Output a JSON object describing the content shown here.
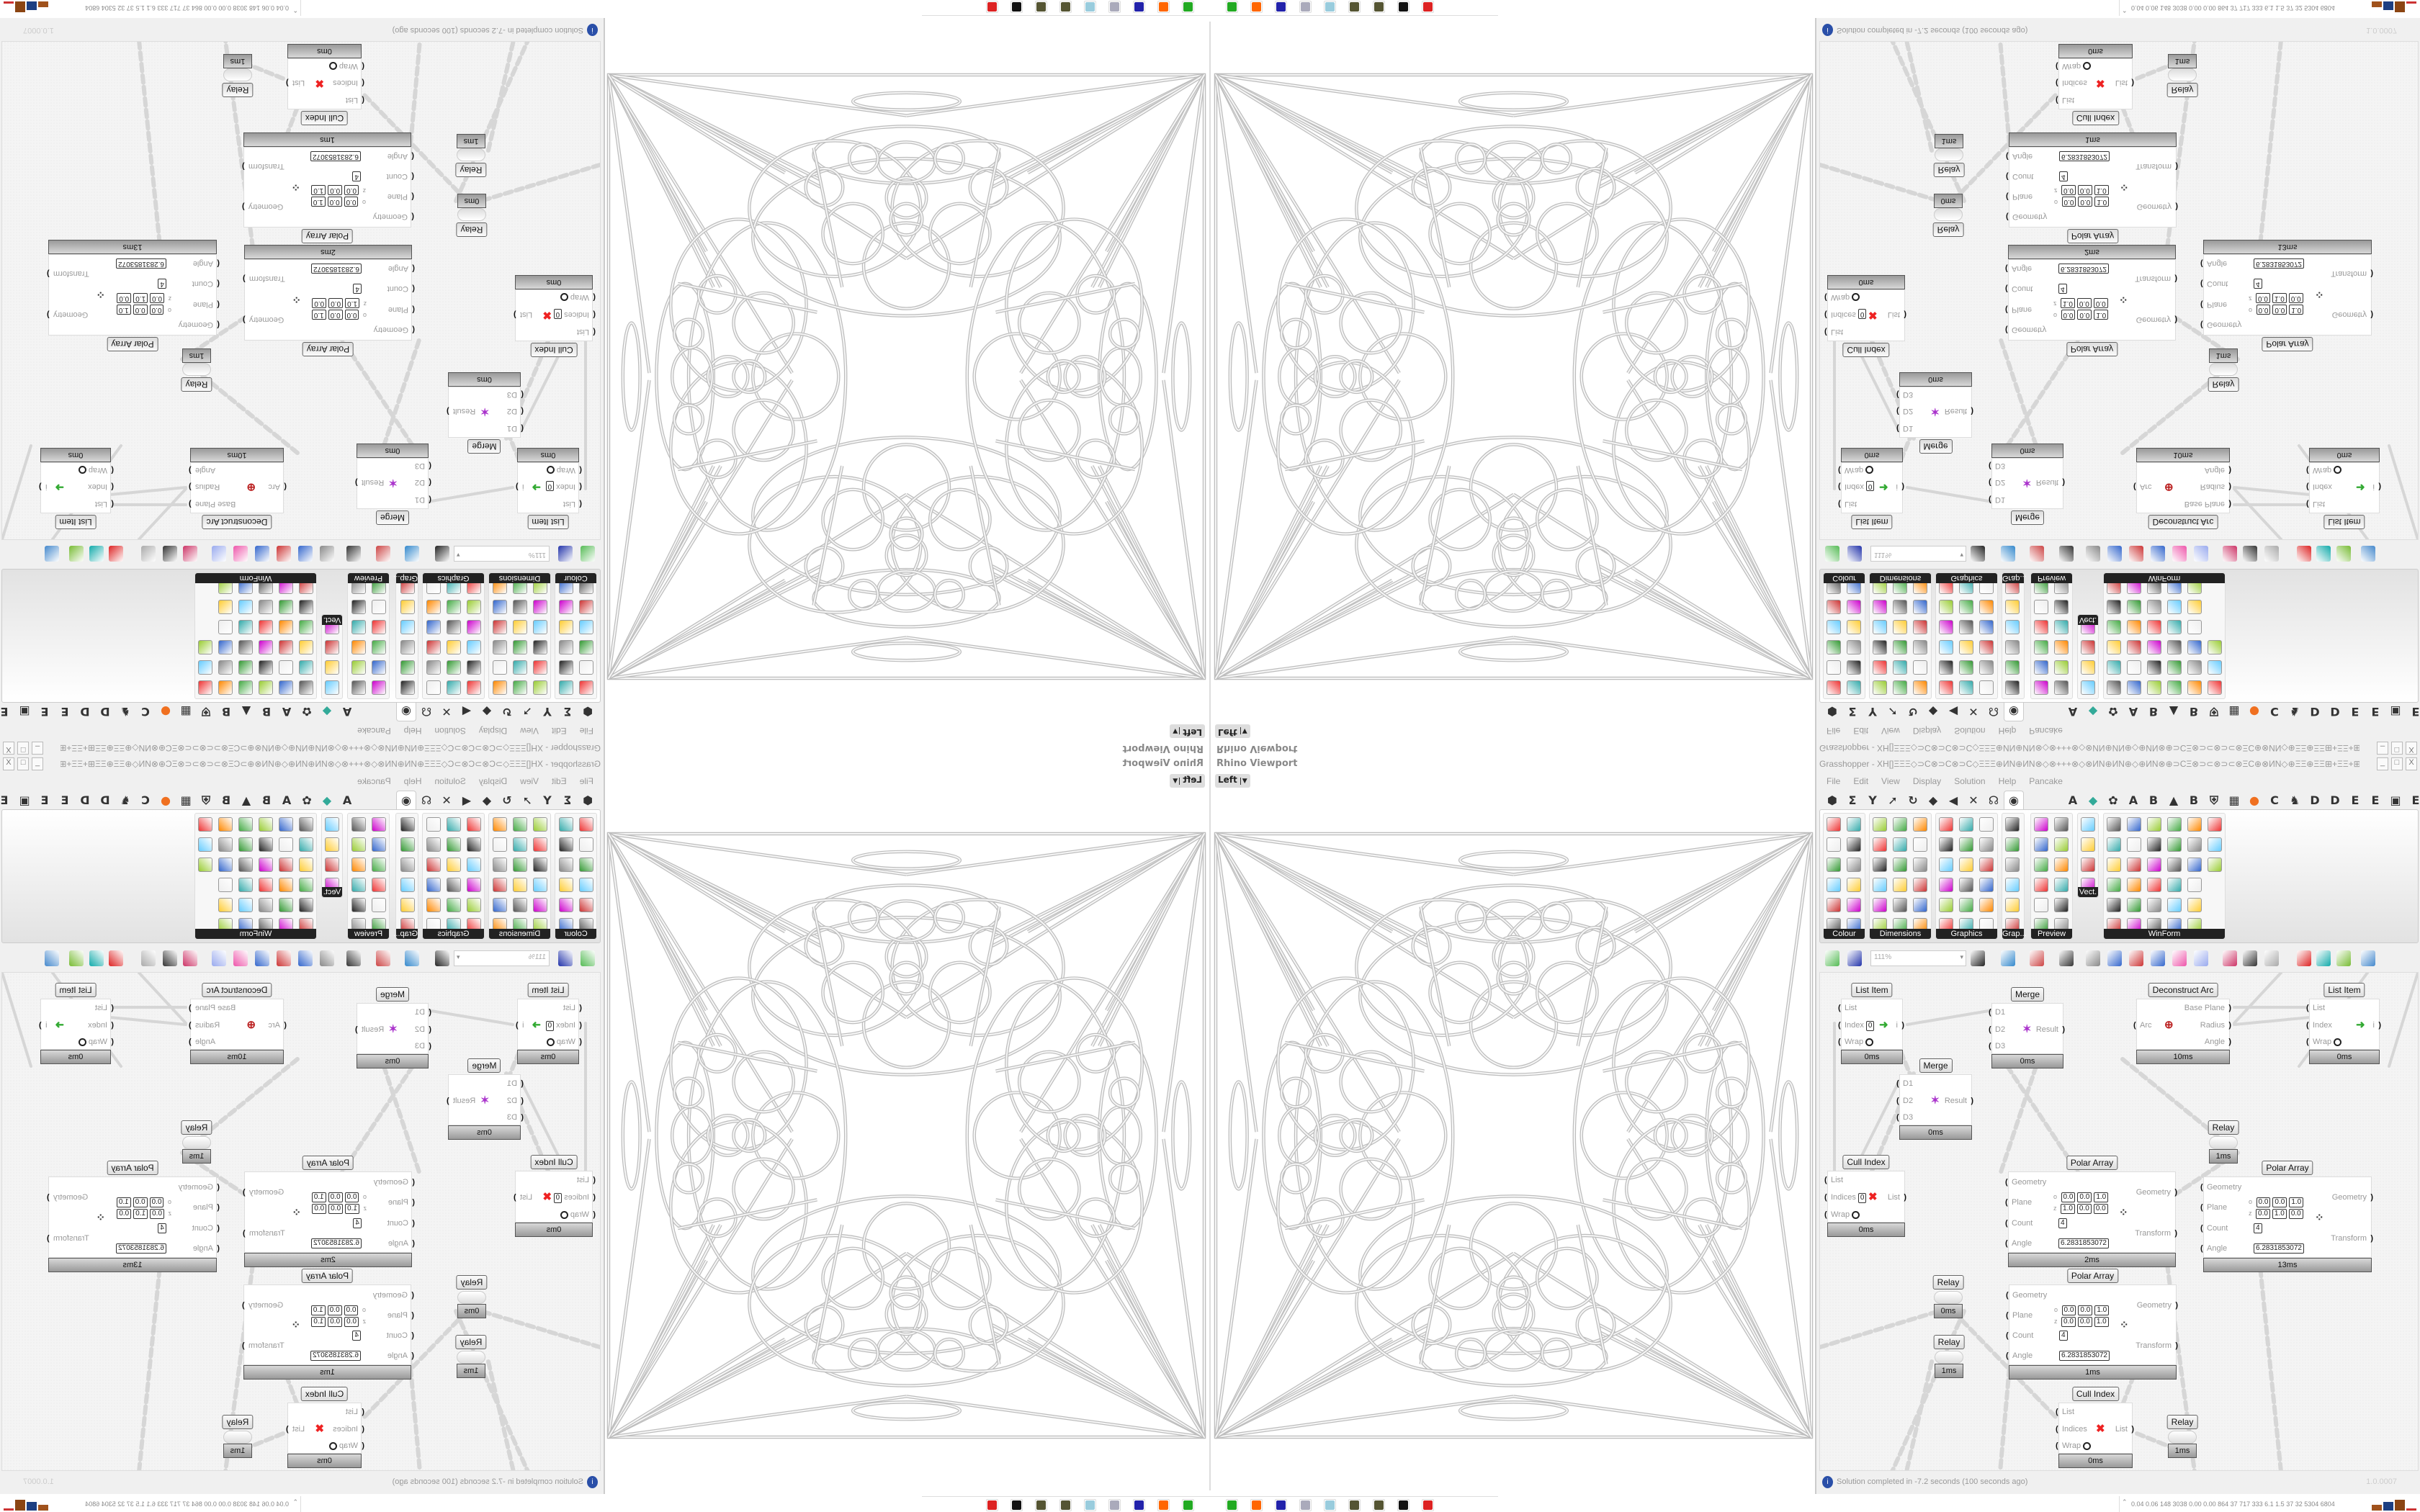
{
  "viewport": {
    "title": "Rhino Viewport",
    "view": "Left"
  },
  "grasshopper": {
    "title": "Grasshopper - XH[]ΞΞΞ◇⊃C⊗⊃C⊗⊃C◇ΞΞΞ⊕ИN⊕ИN⊗◇⊗+++⊗◇⊗ИN⊕ИN⊕◇⊕ИN⊗⊕⊃CΞ⊗⊃⊂⊗⊃⊂⊗ΞC⊕⊗ИN◇⊕ΞΞ⊕ΞΞ⊞+ΞΞ+⊞ΞΞ⊕◇⊕⊃CΞΞ⊕+⊃C...",
    "window_buttons": [
      "_",
      "□",
      "X"
    ],
    "menu": [
      "File",
      "Edit",
      "View",
      "Display",
      "Solution",
      "Help",
      "Pancake"
    ],
    "tab_icons_left": [
      "⬢",
      "Σ",
      "Y",
      "➚",
      "↻",
      "◆",
      "◀",
      "✕",
      "☊"
    ],
    "active_tab_icon": "◉",
    "tab_icons_right": [
      "A",
      "◆",
      "✿",
      "A",
      "B",
      "▲",
      "B",
      "⛨",
      "▦",
      "●",
      "C",
      "♞",
      "D",
      "D",
      "E",
      "E",
      "▣",
      "E"
    ],
    "ribbon_panels": [
      "Colour",
      "Dimensions",
      "Graphics",
      "Grap...",
      "Preview",
      "Vect.",
      "WinForm"
    ],
    "zoom": "111%",
    "nodes": [
      {
        "label": "List Item",
        "inputs": [
          "List",
          "Index",
          "Wrap"
        ],
        "index_value": "0",
        "outputs": [
          "i"
        ],
        "time": "0ms"
      },
      {
        "label": "Merge",
        "inputs": [
          "D1",
          "D2",
          "D3"
        ],
        "outputs": [
          "Result"
        ],
        "time": "0ms"
      },
      {
        "label": "Deconstruct Arc",
        "inputs": [
          "Arc"
        ],
        "outputs": [
          "Base Plane",
          "Radius",
          "Angle"
        ],
        "time": "10ms"
      },
      {
        "label": "List Item",
        "inputs": [
          "List",
          "Index",
          "Wrap"
        ],
        "outputs": [
          "i"
        ],
        "time": "0ms"
      },
      {
        "label": "Merge",
        "inputs": [
          "D1",
          "D2",
          "D3"
        ],
        "outputs": [
          "Result"
        ],
        "time": "0ms"
      },
      {
        "label": "Relay",
        "time": "1ms"
      },
      {
        "label": "Cull Index",
        "inputs": [
          "List",
          "Indices",
          "Wrap"
        ],
        "index_value": "0",
        "outputs": [
          "List"
        ],
        "time": "0ms"
      },
      {
        "label": "Polar Array",
        "inputs": [
          "Geometry",
          "Plane",
          "Count",
          "Angle"
        ],
        "outputs": [
          "Geometry",
          "Transform"
        ],
        "plane_o": [
          "0.0",
          "0.0",
          "1.0"
        ],
        "plane_z": [
          "1.0",
          "0.0",
          "0.0"
        ],
        "count": "4",
        "angle": "6.2831853072",
        "time": "2ms"
      },
      {
        "label": "Polar Array",
        "inputs": [
          "Geometry",
          "Plane",
          "Count",
          "Angle"
        ],
        "outputs": [
          "Geometry",
          "Transform"
        ],
        "plane_o": [
          "0.0",
          "0.0",
          "1.0"
        ],
        "plane_z": [
          "0.0",
          "1.0",
          "0.0"
        ],
        "count": "4",
        "angle": "6.2831853072",
        "time": "13ms"
      },
      {
        "label": "Polar Array",
        "inputs": [
          "Geometry",
          "Plane",
          "Count",
          "Angle"
        ],
        "outputs": [
          "Geometry",
          "Transform"
        ],
        "plane_o": [
          "0.0",
          "0.0",
          "1.0"
        ],
        "plane_z": [
          "0.0",
          "0.0",
          "1.0"
        ],
        "count": "4",
        "angle": "6.2831853072",
        "time": "1ms"
      },
      {
        "label": "Relay",
        "time": "0ms"
      },
      {
        "label": "Relay",
        "time": "1ms"
      },
      {
        "label": "Cull Index",
        "inputs": [
          "List",
          "Indices",
          "Wrap"
        ],
        "outputs": [
          "List"
        ],
        "time": "0ms"
      },
      {
        "label": "Relay",
        "time": "1ms"
      }
    ],
    "status": "Solution completed in -7.2 seconds (100 seconds ago)",
    "version": "1.0.0007"
  },
  "perf": {
    "stats": "0.04 0.06 148 3038 0.00 0.00 864 37 717 333 6.1 1.5 37 32 5304 6804"
  },
  "taskbar": {
    "icons": [
      "app-icon",
      "firefox-icon",
      "floppy-64-icon",
      "scroll-icon",
      "notepad-icon",
      "cocoon-icon",
      "cocoon-icon",
      "rhino-icon",
      "red-app-icon"
    ]
  }
}
